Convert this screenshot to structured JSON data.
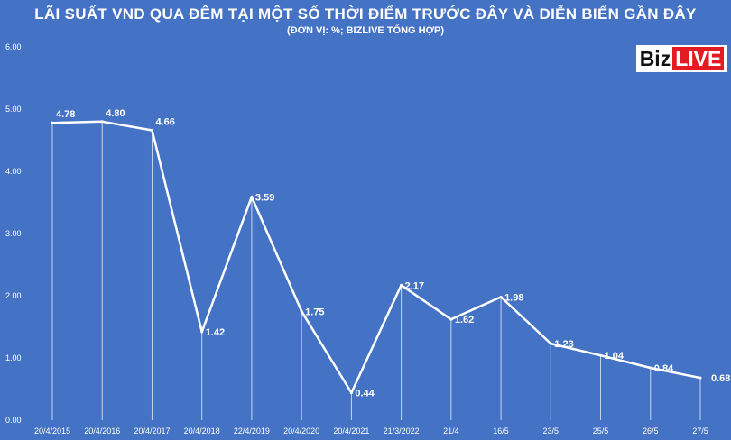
{
  "chart_data": {
    "type": "line",
    "title": "LÃI SUẤT VND QUA ĐÊM TẠI MỘT SỐ THỜI ĐIỂM TRƯỚC ĐÂY VÀ DIỄN BIẾN GẦN ĐÂY",
    "subtitle": "(ĐƠN VỊ: %; BIZLIVE TỔNG HỢP)",
    "categories": [
      "20/4/2015",
      "20/4/2016",
      "20/4/2017",
      "20/4/2018",
      "22/4/2019",
      "20/4/2020",
      "20/4/2021",
      "21/3/2022",
      "21/4",
      "16/5",
      "23/5",
      "25/5",
      "26/5",
      "27/5"
    ],
    "values": [
      4.78,
      4.8,
      4.66,
      1.42,
      3.59,
      1.75,
      0.44,
      2.17,
      1.62,
      1.98,
      1.23,
      1.04,
      0.84,
      0.68
    ],
    "data_labels": [
      "4.78",
      "4.80",
      "4.66",
      "1.42",
      "3.59",
      "1.75",
      "0.44",
      "2.17",
      "1.62",
      "1.98",
      "1.23",
      "1.04",
      "0.84",
      "0.68"
    ],
    "y_ticks": [
      "0.00",
      "1.00",
      "2.00",
      "3.00",
      "4.00",
      "5.00",
      "6.00"
    ],
    "ylim": [
      0,
      6
    ],
    "grid": false,
    "drop_lines": true,
    "line_color": "#ffffff",
    "background_color": "#4472c4"
  },
  "logo": {
    "text_left": "Biz",
    "text_right": "LIVE",
    "accent": "#e31b23"
  }
}
